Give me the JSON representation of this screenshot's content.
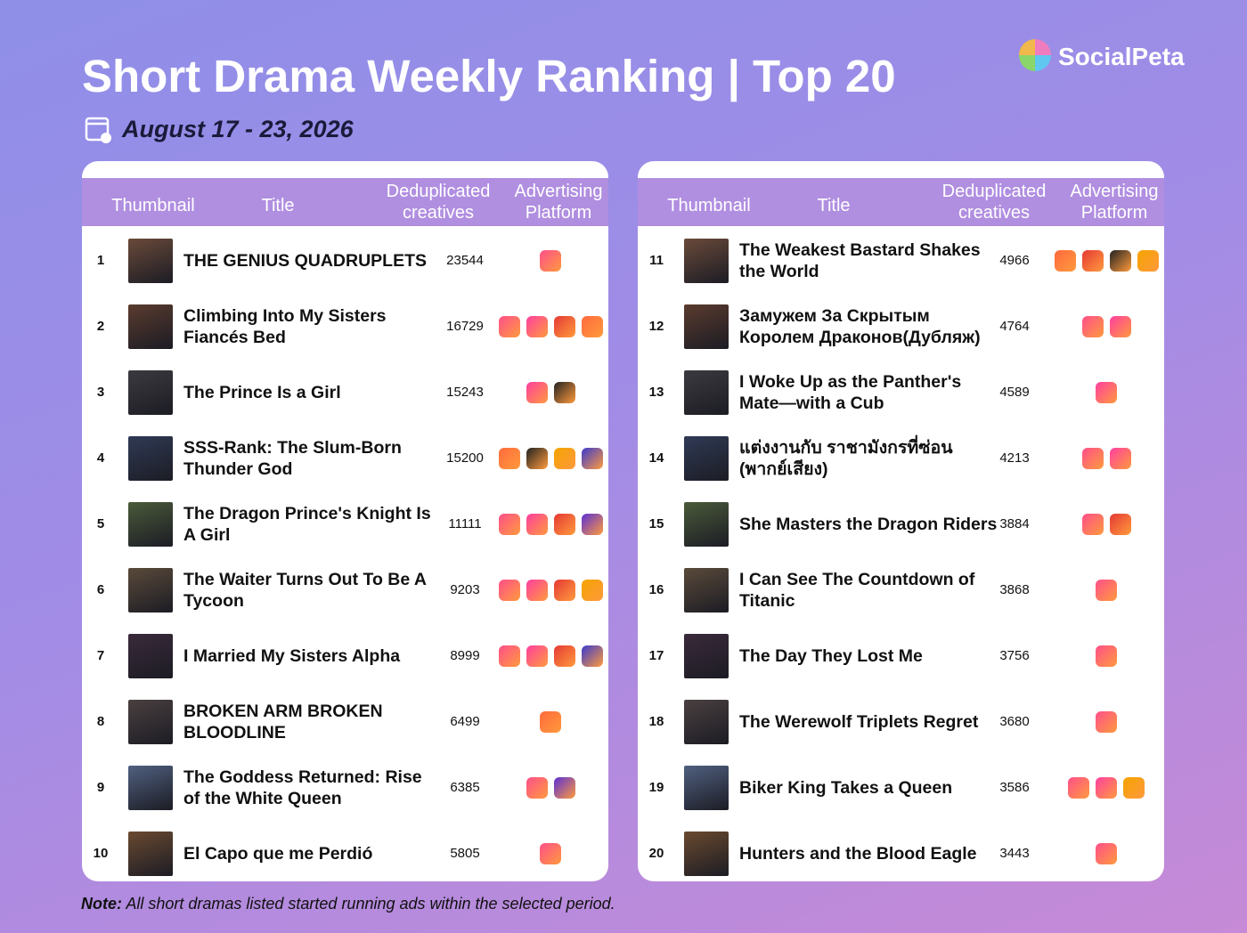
{
  "header": {
    "title": "Short Drama Weekly Ranking | Top 20",
    "date": "August 17 - 23, 2026",
    "brand": "SocialPeta"
  },
  "tables": [
    {
      "columns": [
        "Thumbnail",
        "Title",
        "Deduplicated creatives",
        "Advertising Platform"
      ],
      "rows": [
        [
          1,
          "THE GENIUS QUADRUPLETS",
          23544
        ],
        [
          2,
          "Climbing Into My Sisters Fiancés Bed",
          16729
        ],
        [
          3,
          "The Prince Is a Girl",
          15243
        ],
        [
          4,
          "SSS-Rank: The Slum-Born Thunder God",
          15200
        ],
        [
          5,
          "The Dragon Prince's Knight Is A Girl",
          11111
        ],
        [
          6,
          "The Waiter Turns Out To Be A Tycoon",
          9203
        ],
        [
          7,
          "I Married My Sisters Alpha",
          8999
        ],
        [
          8,
          "BROKEN ARM BROKEN BLOODLINE",
          6499
        ],
        [
          9,
          "The Goddess Returned: Rise of the White Queen",
          6385
        ],
        [
          10,
          "El Capo que me Perdió",
          5805
        ]
      ]
    },
    {
      "columns": [
        "Thumbnail",
        "Title",
        "Deduplicated creatives",
        "Advertising Platform"
      ],
      "rows": [
        [
          11,
          "The Weakest Bastard Shakes the World",
          4966
        ],
        [
          12,
          "Замужем За Скрытым Королем Драконов(Дубляж)",
          4764
        ],
        [
          13,
          "I Woke Up as the Panther's Mate—with a Cub",
          4589
        ],
        [
          14,
          "แต่งงานกับ ราชามังกรที่ซ่อน (พากย์เสียง)",
          4213
        ],
        [
          15,
          "She Masters the Dragon Riders",
          3884
        ],
        [
          16,
          "I Can See The Countdown of Titanic",
          3868
        ],
        [
          17,
          "The Day They Lost Me",
          3756
        ],
        [
          18,
          "The Werewolf Triplets Regret",
          3680
        ],
        [
          19,
          "Biker King Takes a Queen",
          3586
        ],
        [
          20,
          "Hunters and the Blood Eagle",
          3443
        ]
      ]
    }
  ],
  "note": {
    "label": "Note:",
    "text": "All short dramas listed started running ads within the selected period."
  }
}
